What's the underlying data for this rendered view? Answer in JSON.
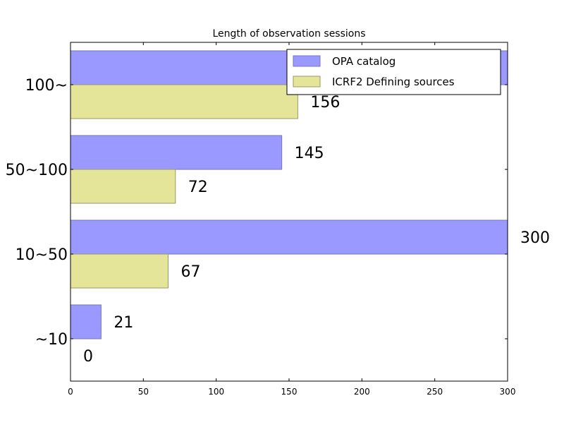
{
  "chart_data": {
    "type": "bar",
    "orientation": "horizontal",
    "title": "Length of observation sessions",
    "xlabel": "",
    "ylabel": "",
    "xlim": [
      0,
      300
    ],
    "xticks": [
      0,
      50,
      100,
      150,
      200,
      250,
      300
    ],
    "categories": [
      "~10",
      "10~50",
      "50~100",
      "100~"
    ],
    "series": [
      {
        "name": "OPA catalog",
        "values": [
          21,
          300,
          145,
          300
        ],
        "color": "#9999ff"
      },
      {
        "name": "ICRF2 Defining sources",
        "values": [
          0,
          67,
          72,
          156
        ],
        "color": "#e5e599"
      }
    ],
    "data_labels": {
      "OPA catalog": [
        "21",
        "300",
        "145",
        ""
      ],
      "ICRF2 Defining sources": [
        "0",
        "67",
        "72",
        "156"
      ]
    },
    "grid": false,
    "legend_position": "top-right"
  }
}
